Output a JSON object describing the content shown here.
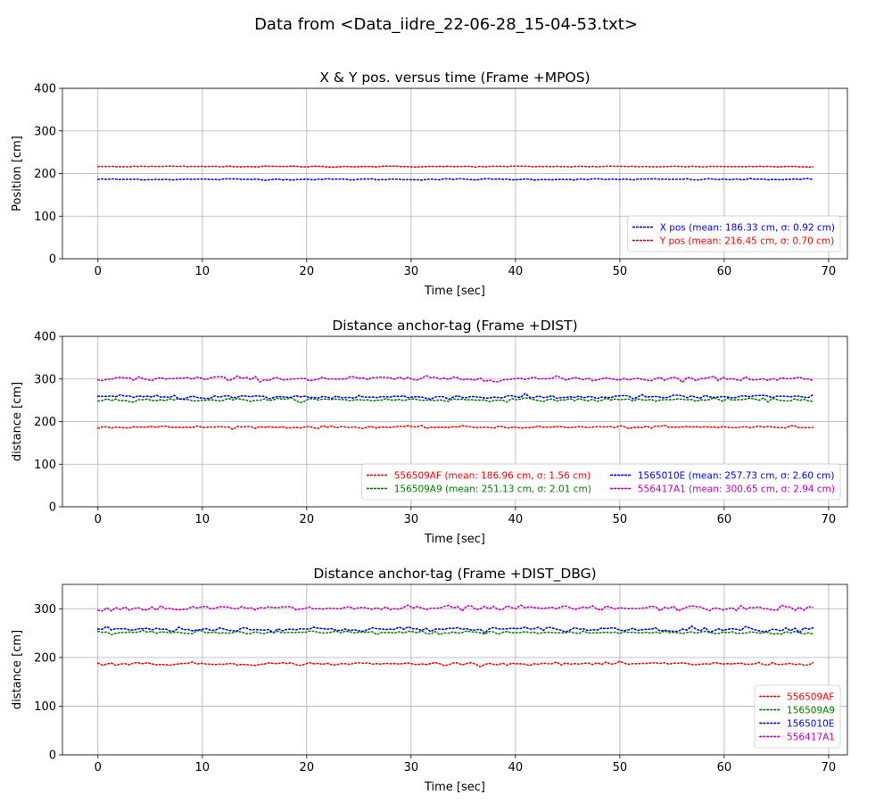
{
  "figure": {
    "suptitle": "Data from <Data_iidre_22-06-28_15-04-53.txt>"
  },
  "chart_data": [
    {
      "type": "line",
      "title": "X & Y pos. versus time (Frame +MPOS)",
      "xlabel": "Time [sec]",
      "ylabel": "Position [cm]",
      "xlim": [
        -3.4,
        71.8
      ],
      "ylim": [
        0,
        400
      ],
      "xticks": [
        0,
        10,
        20,
        30,
        40,
        50,
        60,
        70
      ],
      "yticks": [
        0,
        100,
        200,
        300,
        400
      ],
      "grid": true,
      "legend_position": "lower right",
      "legend_columns": 1,
      "x_range": [
        0,
        68.5
      ],
      "series": [
        {
          "name": "X pos (mean: 186.33 cm, σ: 0.92 cm)",
          "mean": 186.33,
          "std": 0.92,
          "color": "#0000ff",
          "style": "dotted"
        },
        {
          "name": "Y pos (mean: 216.45 cm, σ: 0.70 cm)",
          "mean": 216.45,
          "std": 0.7,
          "color": "#ff0000",
          "style": "dotted"
        }
      ]
    },
    {
      "type": "line",
      "title": "Distance anchor-tag (Frame +DIST)",
      "xlabel": "Time [sec]",
      "ylabel": "distance [cm]",
      "xlim": [
        -3.4,
        71.8
      ],
      "ylim": [
        0,
        400
      ],
      "xticks": [
        0,
        10,
        20,
        30,
        40,
        50,
        60,
        70
      ],
      "yticks": [
        0,
        100,
        200,
        300,
        400
      ],
      "grid": true,
      "legend_position": "lower right",
      "legend_columns": 2,
      "x_range": [
        0,
        68.5
      ],
      "series": [
        {
          "name": "556509AF (mean: 186.96 cm, σ: 1.56 cm)",
          "mean": 186.96,
          "std": 1.56,
          "color": "#ff0000",
          "style": "dotted"
        },
        {
          "name": "156509A9 (mean: 251.13 cm, σ: 2.01 cm)",
          "mean": 251.13,
          "std": 2.01,
          "color": "#008000",
          "style": "dotted"
        },
        {
          "name": "1565010E (mean: 257.73 cm, σ: 2.60 cm)",
          "mean": 257.73,
          "std": 2.6,
          "color": "#0000ff",
          "style": "dotted"
        },
        {
          "name": "556417A1 (mean: 300.65 cm, σ: 2.94 cm)",
          "mean": 300.65,
          "std": 2.94,
          "color": "#bf00bf",
          "style": "dotted"
        }
      ]
    },
    {
      "type": "line",
      "title": "Distance anchor-tag (Frame +DIST_DBG)",
      "xlabel": "Time [sec]",
      "ylabel": "distance [cm]",
      "xlim": [
        -3.4,
        71.8
      ],
      "ylim": [
        0,
        350
      ],
      "xticks": [
        0,
        10,
        20,
        30,
        40,
        50,
        60,
        70
      ],
      "yticks": [
        0,
        100,
        200,
        300
      ],
      "grid": true,
      "legend_position": "lower right",
      "legend_columns": 1,
      "x_range": [
        0,
        68.5
      ],
      "series": [
        {
          "name": "556509AF",
          "mean": 187,
          "std": 1.6,
          "color": "#ff0000",
          "style": "dotted"
        },
        {
          "name": "156509A9",
          "mean": 251,
          "std": 2.0,
          "color": "#008000",
          "style": "dotted"
        },
        {
          "name": "1565010E",
          "mean": 258,
          "std": 2.6,
          "color": "#0000ff",
          "style": "dotted"
        },
        {
          "name": "556417A1",
          "mean": 301,
          "std": 2.9,
          "color": "#bf00bf",
          "style": "dotted"
        }
      ]
    }
  ]
}
